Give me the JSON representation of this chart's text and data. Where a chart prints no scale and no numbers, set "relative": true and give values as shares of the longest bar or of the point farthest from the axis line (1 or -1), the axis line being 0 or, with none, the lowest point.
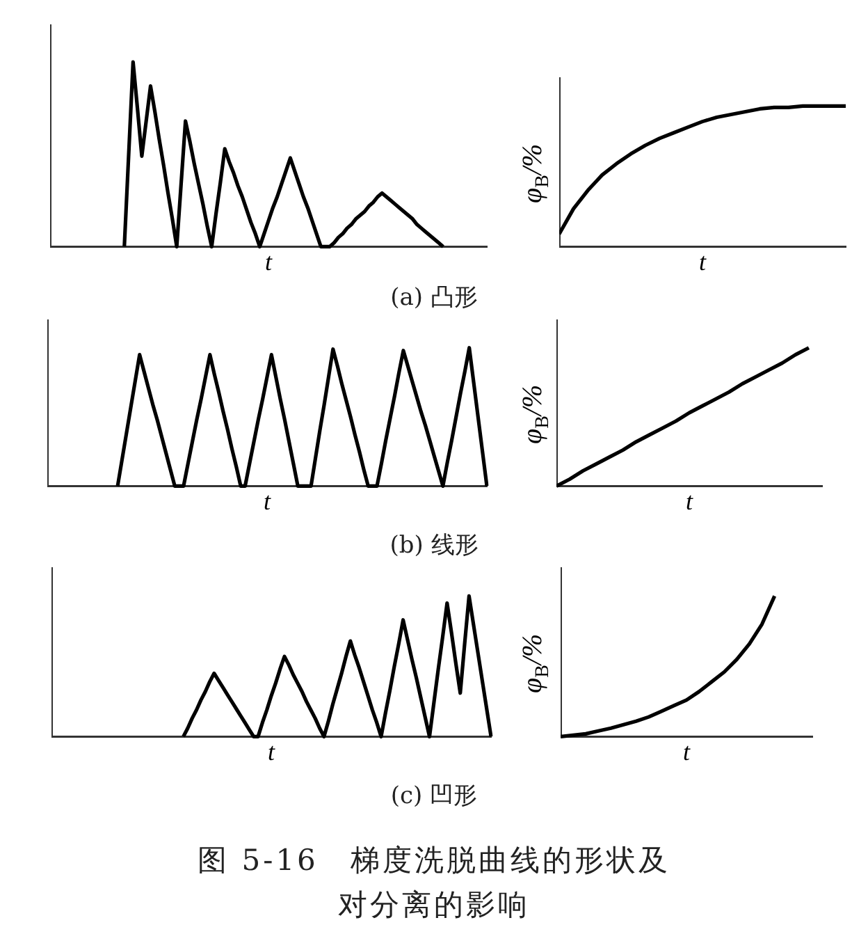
{
  "chart_data": [
    {
      "type": "line",
      "relative": true,
      "xlabel": "t",
      "marker": "none",
      "color": "#000000",
      "categories": [
        null,
        null,
        null,
        null,
        null,
        null,
        null,
        null,
        null,
        null,
        null,
        null,
        null,
        null,
        null,
        null,
        null,
        null,
        null,
        null,
        null,
        null,
        null,
        null,
        null,
        null,
        null,
        null,
        null,
        null,
        null,
        null,
        null,
        null,
        null,
        null,
        null,
        null,
        null,
        null,
        null,
        null,
        null,
        null,
        null,
        null,
        null,
        null,
        null,
        null,
        null,
        null,
        null,
        null,
        null,
        null,
        null,
        null,
        null,
        null,
        null,
        null,
        null,
        null,
        null,
        null,
        null,
        null,
        null,
        null,
        null,
        null,
        null,
        null,
        null,
        null,
        null,
        null,
        null,
        null,
        null,
        null,
        null,
        null,
        null,
        null,
        null,
        null,
        null,
        null,
        null,
        null,
        null,
        null,
        null,
        null,
        null,
        null,
        null,
        null,
        null
      ],
      "values": [
        null,
        null,
        null,
        null,
        null,
        null,
        null,
        null,
        null,
        null,
        null,
        null,
        null,
        null,
        null,
        null,
        null,
        0,
        0.5,
        1,
        0.75,
        0.49,
        0.68,
        0.87,
        0.73,
        0.58,
        0.44,
        0.29,
        0.15,
        0,
        0.34,
        0.68,
        0.57,
        0.45,
        0.34,
        0.23,
        0.11,
        0,
        0.18,
        0.35,
        0.53,
        0.46,
        0.4,
        0.33,
        0.27,
        0.2,
        0.13,
        0.07,
        0,
        0.07,
        0.14,
        0.21,
        0.27,
        0.34,
        0.41,
        0.48,
        0.41,
        0.34,
        0.27,
        0.21,
        0.14,
        0.07,
        0,
        0,
        0,
        0.02,
        0.05,
        0.07,
        0.1,
        0.12,
        0.15,
        0.17,
        0.19,
        0.22,
        0.24,
        0.27,
        0.29,
        0.27,
        0.25,
        0.23,
        0.21,
        0.19,
        0.17,
        0.15,
        0.12,
        0.1,
        0.08,
        0.06,
        0.04,
        0.02,
        0,
        null,
        null,
        null,
        null,
        null,
        null,
        null,
        null,
        null,
        null
      ],
      "annotations": [
        "(a) 凸形"
      ]
    },
    {
      "type": "line",
      "relative": true,
      "xlabel": "t",
      "ylabel": "φ$_{B}$/%",
      "marker": "none",
      "color": "#000000",
      "categories": [
        null,
        null,
        null,
        null,
        null,
        null,
        null,
        null,
        null,
        null,
        null,
        null,
        null,
        null,
        null,
        null,
        null,
        null,
        null,
        null,
        null
      ],
      "values": [
        0.09,
        0.27,
        0.4,
        0.51,
        0.59,
        0.66,
        0.72,
        0.77,
        0.81,
        0.85,
        0.89,
        0.92,
        0.94,
        0.96,
        0.98,
        0.99,
        0.99,
        1,
        1,
        1,
        1
      ]
    },
    {
      "type": "line",
      "relative": true,
      "xlabel": "t",
      "marker": "none",
      "color": "#000000",
      "categories": [
        null,
        null,
        null,
        null,
        null,
        null,
        null,
        null,
        null,
        null,
        null,
        null,
        null,
        null,
        null,
        null,
        null,
        null,
        null,
        null,
        null,
        null,
        null,
        null,
        null,
        null,
        null,
        null,
        null,
        null,
        null,
        null,
        null,
        null,
        null,
        null,
        null,
        null,
        null,
        null,
        null,
        null,
        null,
        null,
        null,
        null,
        null,
        null,
        null,
        null,
        null,
        null,
        null,
        null,
        null,
        null,
        null,
        null,
        null,
        null,
        null,
        null,
        null,
        null,
        null,
        null,
        null,
        null,
        null,
        null,
        null,
        null,
        null,
        null,
        null,
        null,
        null,
        null,
        null,
        null,
        null,
        null,
        null,
        null,
        null,
        null,
        null,
        null,
        null,
        null,
        null,
        null,
        null,
        null,
        null,
        null,
        null,
        null,
        null,
        null,
        null
      ],
      "values": [
        null,
        null,
        null,
        null,
        null,
        null,
        null,
        null,
        null,
        null,
        null,
        null,
        null,
        null,
        null,
        null,
        0,
        0.19,
        0.38,
        0.57,
        0.76,
        0.95,
        0.83,
        0.71,
        0.59,
        0.48,
        0.36,
        0.24,
        0.12,
        0,
        0,
        0,
        0.16,
        0.32,
        0.48,
        0.63,
        0.79,
        0.95,
        0.81,
        0.68,
        0.54,
        0.41,
        0.27,
        0.14,
        0,
        0,
        0.16,
        0.32,
        0.48,
        0.63,
        0.79,
        0.95,
        0.79,
        0.63,
        0.48,
        0.32,
        0.16,
        0,
        0,
        0,
        0,
        0.2,
        0.4,
        0.59,
        0.79,
        0.99,
        0.87,
        0.74,
        0.62,
        0.5,
        0.37,
        0.25,
        0.12,
        0,
        0,
        0,
        0.16,
        0.33,
        0.49,
        0.65,
        0.82,
        0.98,
        0.87,
        0.76,
        0.65,
        0.54,
        0.44,
        0.33,
        0.22,
        0.11,
        0,
        0.17,
        0.33,
        0.5,
        0.67,
        0.83,
        1,
        0.75,
        0.5,
        0.25,
        0
      ],
      "annotations": [
        "(b) 线形"
      ]
    },
    {
      "type": "line",
      "relative": true,
      "xlabel": "t",
      "ylabel": "φ$_{B}$/%",
      "marker": "none",
      "color": "#000000",
      "categories": [
        null,
        null,
        null,
        null,
        null,
        null,
        null,
        null,
        null,
        null,
        null,
        null,
        null,
        null,
        null,
        null,
        null,
        null,
        null,
        null,
        null
      ],
      "values": [
        0,
        0.05,
        0.11,
        0.16,
        0.21,
        0.26,
        0.32,
        0.37,
        0.42,
        0.47,
        0.53,
        0.58,
        0.63,
        0.68,
        0.74,
        0.79,
        0.84,
        0.89,
        0.95,
        1,
        null
      ]
    },
    {
      "type": "line",
      "relative": true,
      "xlabel": "t",
      "marker": "none",
      "color": "#000000",
      "categories": [
        null,
        null,
        null,
        null,
        null,
        null,
        null,
        null,
        null,
        null,
        null,
        null,
        null,
        null,
        null,
        null,
        null,
        null,
        null,
        null,
        null,
        null,
        null,
        null,
        null,
        null,
        null,
        null,
        null,
        null,
        null,
        null,
        null,
        null,
        null,
        null,
        null,
        null,
        null,
        null,
        null,
        null,
        null,
        null,
        null,
        null,
        null,
        null,
        null,
        null,
        null,
        null,
        null,
        null,
        null,
        null,
        null,
        null,
        null,
        null,
        null,
        null,
        null,
        null,
        null,
        null,
        null,
        null,
        null,
        null,
        null,
        null,
        null,
        null,
        null,
        null,
        null,
        null,
        null,
        null,
        null,
        null,
        null,
        null,
        null,
        null,
        null,
        null,
        null,
        null,
        null,
        null,
        null,
        null,
        null,
        null,
        null,
        null,
        null,
        null,
        null
      ],
      "values": [
        null,
        null,
        null,
        null,
        null,
        null,
        null,
        null,
        null,
        null,
        null,
        null,
        null,
        null,
        null,
        null,
        null,
        null,
        null,
        null,
        null,
        null,
        null,
        null,
        null,
        null,
        null,
        null,
        null,
        null,
        0,
        0.06,
        0.13,
        0.19,
        0.26,
        0.32,
        0.39,
        0.45,
        0.4,
        0.35,
        0.3,
        0.25,
        0.2,
        0.15,
        0.1,
        0.05,
        0,
        0,
        0.1,
        0.19,
        0.29,
        0.38,
        0.48,
        0.57,
        0.51,
        0.44,
        0.38,
        0.32,
        0.25,
        0.19,
        0.13,
        0.06,
        0,
        0.11,
        0.23,
        0.34,
        0.45,
        0.57,
        0.68,
        0.58,
        0.49,
        0.39,
        0.29,
        0.19,
        0.1,
        0,
        0.17,
        0.33,
        0.5,
        0.66,
        0.83,
        0.69,
        0.55,
        0.42,
        0.28,
        0.14,
        0,
        0.24,
        0.48,
        0.71,
        0.95,
        0.74,
        0.52,
        0.31,
        0.66,
        1,
        0.8,
        0.6,
        0.4,
        0.2,
        0
      ],
      "annotations": [
        "(c) 凹形"
      ]
    },
    {
      "type": "line",
      "relative": true,
      "xlabel": "t",
      "ylabel": "φ$_{B}$/%",
      "marker": "none",
      "color": "#000000",
      "categories": [
        null,
        null,
        null,
        null,
        null,
        null,
        null,
        null,
        null,
        null,
        null,
        null,
        null,
        null,
        null,
        null,
        null,
        null,
        null,
        null,
        null
      ],
      "values": [
        0,
        0.01,
        0.02,
        0.04,
        0.06,
        0.085,
        0.11,
        0.14,
        0.18,
        0.22,
        0.26,
        0.32,
        0.39,
        0.46,
        0.55,
        0.66,
        0.8,
        1,
        null,
        null,
        null
      ],
      "annotations": [
        "图 5-16　梯度洗脱曲线的形状及对分离的影响"
      ]
    }
  ]
}
